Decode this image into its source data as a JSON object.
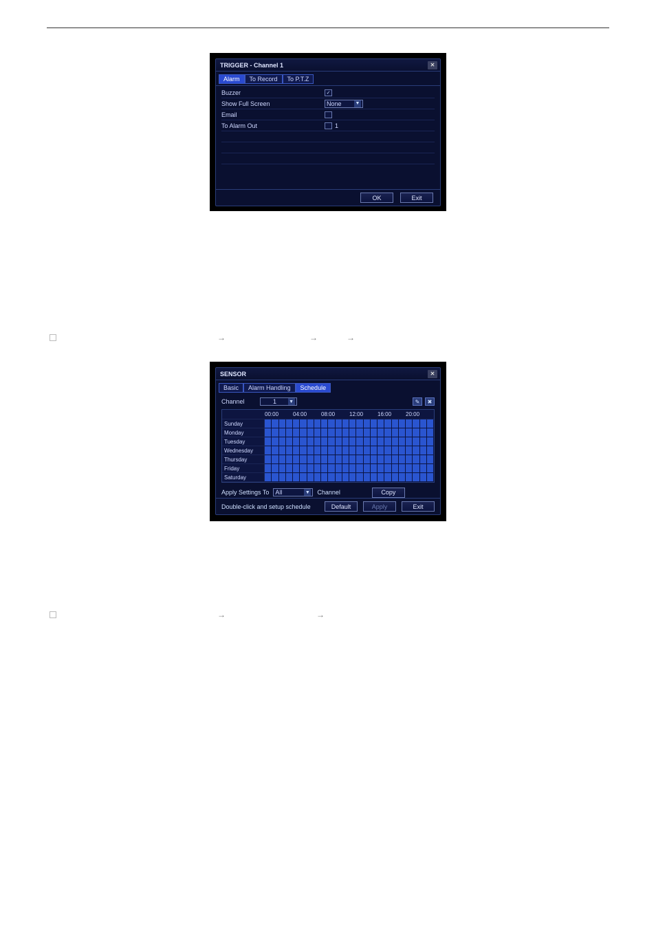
{
  "trigger_dialog": {
    "window_title": "TRIGGER - Channel 1",
    "tabs": [
      "Alarm",
      "To Record",
      "To P.T.Z"
    ],
    "active_tab_index": 0,
    "rows": {
      "buzzer_label": "Buzzer",
      "buzzer_checked": true,
      "fullscreen_label": "Show Full Screen",
      "fullscreen_value": "None",
      "email_label": "Email",
      "email_checked": false,
      "alarmout_label": "To Alarm Out",
      "alarmout_checked": false,
      "alarmout_num": "1"
    },
    "ok_label": "OK",
    "exit_label": "Exit",
    "close_glyph": "✕"
  },
  "bullets": {
    "b1": {
      "pre": "",
      "parts": [
        "",
        "",
        ""
      ]
    },
    "b2": {
      "pre": "",
      "parts": [
        "",
        ""
      ]
    }
  },
  "sensor_dialog": {
    "window_title": "SENSOR",
    "tabs": [
      "Basic",
      "Alarm Handling",
      "Schedule"
    ],
    "active_tab_index": 2,
    "channel_label": "Channel",
    "channel_value": "1",
    "pencil_glyph": "✎",
    "erase_glyph": "✖",
    "time_headers": [
      "00:00",
      "04:00",
      "08:00",
      "12:00",
      "16:00",
      "20:00"
    ],
    "days": [
      "Sunday",
      "Monday",
      "Tuesday",
      "Wednesday",
      "Thursday",
      "Friday",
      "Saturday"
    ],
    "segments_per_day": 24,
    "apply_label": "Apply Settings To",
    "apply_value": "All",
    "apply_unit": "Channel",
    "copy_label": "Copy",
    "hint": "Double-click and setup schedule",
    "default_label": "Default",
    "apply_btn": "Apply",
    "exit_label": "Exit",
    "close_glyph": "✕"
  },
  "colors": {
    "schedule_fill": "#2a55d0",
    "window_bg": "#0a1030",
    "window_border": "#2a3d7a"
  }
}
